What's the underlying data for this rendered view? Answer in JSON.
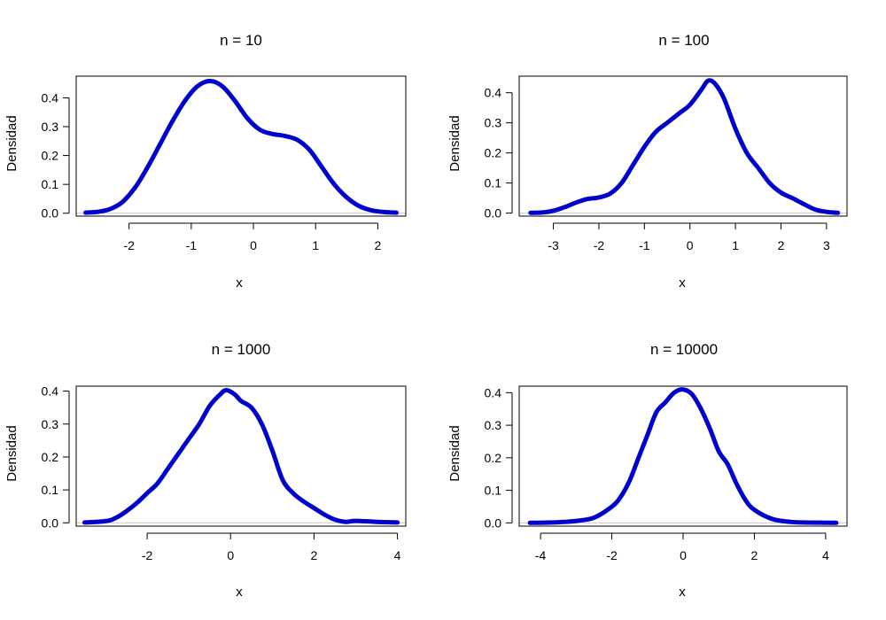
{
  "style": {
    "curve_color": "#0000CC",
    "zero_line_color": "#C8C8C8",
    "frame_color": "#000000"
  },
  "chart_data": [
    {
      "type": "line",
      "title": "n = 10",
      "xlabel": "x",
      "ylabel": "Densidad",
      "xlim": [
        -2.85,
        2.45
      ],
      "ylim": [
        -0.01,
        0.475
      ],
      "xticks": [
        -2,
        -1,
        0,
        1,
        2
      ],
      "yticks": [
        0.0,
        0.1,
        0.2,
        0.3,
        0.4
      ],
      "xtick_labels": [
        "-2",
        "-1",
        "0",
        "1",
        "2"
      ],
      "ytick_labels": [
        "0.0",
        "0.1",
        "0.2",
        "0.3",
        "0.4"
      ],
      "series": [
        {
          "x": [
            -2.7,
            -2.5,
            -2.3,
            -2.1,
            -1.9,
            -1.7,
            -1.5,
            -1.3,
            -1.1,
            -0.9,
            -0.7,
            -0.5,
            -0.3,
            -0.1,
            0.1,
            0.3,
            0.5,
            0.7,
            0.9,
            1.1,
            1.3,
            1.5,
            1.7,
            1.9,
            2.1,
            2.3
          ],
          "y": [
            0.002,
            0.005,
            0.015,
            0.04,
            0.09,
            0.16,
            0.24,
            0.32,
            0.39,
            0.44,
            0.458,
            0.44,
            0.39,
            0.33,
            0.29,
            0.275,
            0.268,
            0.255,
            0.22,
            0.16,
            0.1,
            0.055,
            0.025,
            0.01,
            0.004,
            0.002
          ]
        }
      ]
    },
    {
      "type": "line",
      "title": "n = 100",
      "xlabel": "x",
      "ylabel": "Densidad",
      "xlim": [
        -3.75,
        3.45
      ],
      "ylim": [
        -0.01,
        0.455
      ],
      "xticks": [
        -3,
        -2,
        -1,
        0,
        1,
        2,
        3
      ],
      "yticks": [
        0.0,
        0.1,
        0.2,
        0.3,
        0.4
      ],
      "xtick_labels": [
        "-3",
        "-2",
        "-1",
        "0",
        "1",
        "2",
        "3"
      ],
      "ytick_labels": [
        "0.0",
        "0.1",
        "0.2",
        "0.3",
        "0.4"
      ],
      "series": [
        {
          "x": [
            -3.5,
            -3.25,
            -3.0,
            -2.75,
            -2.5,
            -2.25,
            -2.0,
            -1.75,
            -1.5,
            -1.25,
            -1.0,
            -0.75,
            -0.5,
            -0.25,
            0.0,
            0.25,
            0.4,
            0.55,
            0.75,
            1.0,
            1.25,
            1.5,
            1.75,
            2.0,
            2.25,
            2.5,
            2.75,
            3.0,
            3.25
          ],
          "y": [
            0.001,
            0.002,
            0.008,
            0.02,
            0.035,
            0.047,
            0.052,
            0.065,
            0.1,
            0.16,
            0.22,
            0.27,
            0.3,
            0.33,
            0.36,
            0.41,
            0.44,
            0.43,
            0.38,
            0.28,
            0.2,
            0.15,
            0.1,
            0.068,
            0.05,
            0.03,
            0.012,
            0.004,
            0.001
          ]
        }
      ]
    },
    {
      "type": "line",
      "title": "n = 1000",
      "xlabel": "x",
      "ylabel": "Densidad",
      "xlim": [
        -3.7,
        4.2
      ],
      "ylim": [
        -0.01,
        0.415
      ],
      "xticks": [
        -2,
        0,
        2,
        4
      ],
      "yticks": [
        0.0,
        0.1,
        0.2,
        0.3,
        0.4
      ],
      "xtick_labels": [
        "-2",
        "0",
        "2",
        "4"
      ],
      "ytick_labels": [
        "0.0",
        "0.1",
        "0.2",
        "0.3",
        "0.4"
      ],
      "series": [
        {
          "x": [
            -3.5,
            -3.0,
            -2.75,
            -2.5,
            -2.25,
            -2.0,
            -1.75,
            -1.5,
            -1.25,
            -1.0,
            -0.75,
            -0.5,
            -0.25,
            -0.1,
            0.1,
            0.25,
            0.5,
            0.75,
            1.0,
            1.25,
            1.5,
            1.75,
            2.0,
            2.25,
            2.5,
            2.75,
            3.0,
            3.5,
            4.0
          ],
          "y": [
            0.001,
            0.005,
            0.015,
            0.035,
            0.06,
            0.09,
            0.12,
            0.165,
            0.21,
            0.255,
            0.3,
            0.355,
            0.39,
            0.403,
            0.39,
            0.37,
            0.35,
            0.3,
            0.22,
            0.13,
            0.09,
            0.065,
            0.045,
            0.025,
            0.01,
            0.003,
            0.006,
            0.003,
            0.001
          ]
        }
      ]
    },
    {
      "type": "line",
      "title": "n = 10000",
      "xlabel": "x",
      "ylabel": "Densidad",
      "xlim": [
        -4.6,
        4.6
      ],
      "ylim": [
        -0.01,
        0.42
      ],
      "xticks": [
        -4,
        -2,
        0,
        2,
        4
      ],
      "yticks": [
        0.0,
        0.1,
        0.2,
        0.3,
        0.4
      ],
      "xtick_labels": [
        "-4",
        "-2",
        "0",
        "2",
        "4"
      ],
      "ytick_labels": [
        "0.0",
        "0.1",
        "0.2",
        "0.3",
        "0.4"
      ],
      "series": [
        {
          "x": [
            -4.3,
            -3.5,
            -3.0,
            -2.5,
            -2.0,
            -1.75,
            -1.5,
            -1.25,
            -1.0,
            -0.75,
            -0.5,
            -0.25,
            0.0,
            0.25,
            0.5,
            0.75,
            1.0,
            1.25,
            1.5,
            1.75,
            2.0,
            2.5,
            3.0,
            3.5,
            4.3
          ],
          "y": [
            0.0,
            0.002,
            0.006,
            0.016,
            0.05,
            0.08,
            0.13,
            0.2,
            0.27,
            0.34,
            0.37,
            0.4,
            0.41,
            0.395,
            0.35,
            0.29,
            0.22,
            0.18,
            0.12,
            0.07,
            0.04,
            0.012,
            0.003,
            0.001,
            0.0
          ]
        }
      ]
    }
  ]
}
